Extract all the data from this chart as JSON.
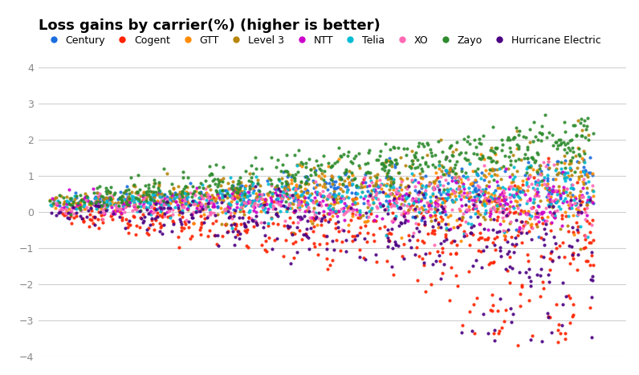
{
  "title": "Loss gains by carrier(%) (higher is better)",
  "carriers": [
    {
      "name": "Century",
      "color": "#1a6ede"
    },
    {
      "name": "Cogent",
      "color": "#ff2200"
    },
    {
      "name": "GTT",
      "color": "#ff8c00"
    },
    {
      "name": "Level 3",
      "color": "#b8860b"
    },
    {
      "name": "NTT",
      "color": "#cc00cc"
    },
    {
      "name": "Telia",
      "color": "#00bcd4"
    },
    {
      "name": "XO",
      "color": "#ff69b4"
    },
    {
      "name": "Zayo",
      "color": "#2e8b2e"
    },
    {
      "name": "Hurricane Electric",
      "color": "#4b0082"
    }
  ],
  "ylim": [
    -4,
    4
  ],
  "background_color": "#ffffff",
  "grid_color": "#d0d0d0",
  "title_fontsize": 13,
  "legend_fontsize": 9,
  "marker_size": 9
}
